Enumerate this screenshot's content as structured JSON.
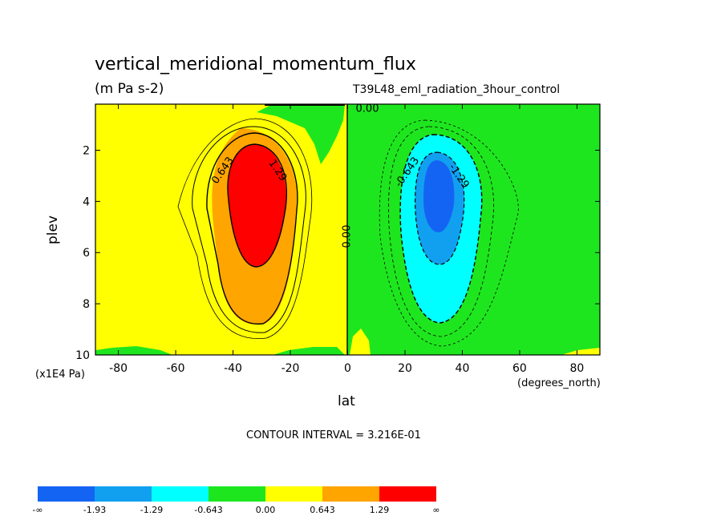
{
  "chart_data": {
    "type": "heatmap",
    "title": "vertical_meridional_momentum_flux",
    "units": "(m Pa s-2)",
    "dataset": "T39L48_eml_radiation_3hour_control",
    "xlabel": "lat",
    "x_units": "(degrees_north)",
    "ylabel": "plev",
    "y_units": "(x1E4 Pa)",
    "xlim": [
      -88,
      88
    ],
    "ylim": [
      10,
      0.2
    ],
    "x_ticks": [
      -80,
      -60,
      -40,
      -20,
      0,
      20,
      40,
      60,
      80
    ],
    "y_ticks": [
      2,
      4,
      6,
      8,
      10
    ],
    "contour_interval_label": "CONTOUR INTERVAL = 3.216E-01",
    "contour_labels": [
      "0.00",
      "0.643",
      "1.29",
      "-0.643",
      "-1.29",
      "0.00"
    ],
    "colorbar": {
      "colors": [
        "#1464F4",
        "#11A0F0",
        "#00FFFF",
        "#1EE61E",
        "#FFFF00",
        "#FFA500",
        "#FF0000"
      ],
      "tick_labels": [
        "-∞",
        "-1.93",
        "-1.29",
        "-0.643",
        "0.00",
        "0.643",
        "1.29",
        "∞"
      ]
    },
    "features": [
      {
        "name": "southern maximum",
        "center_lat": -32,
        "center_plev": 4.0,
        "max_level": "> 1.29"
      },
      {
        "name": "northern minimum",
        "center_lat": 32,
        "center_plev": 3.8,
        "min_level": "< -1.29"
      }
    ]
  }
}
